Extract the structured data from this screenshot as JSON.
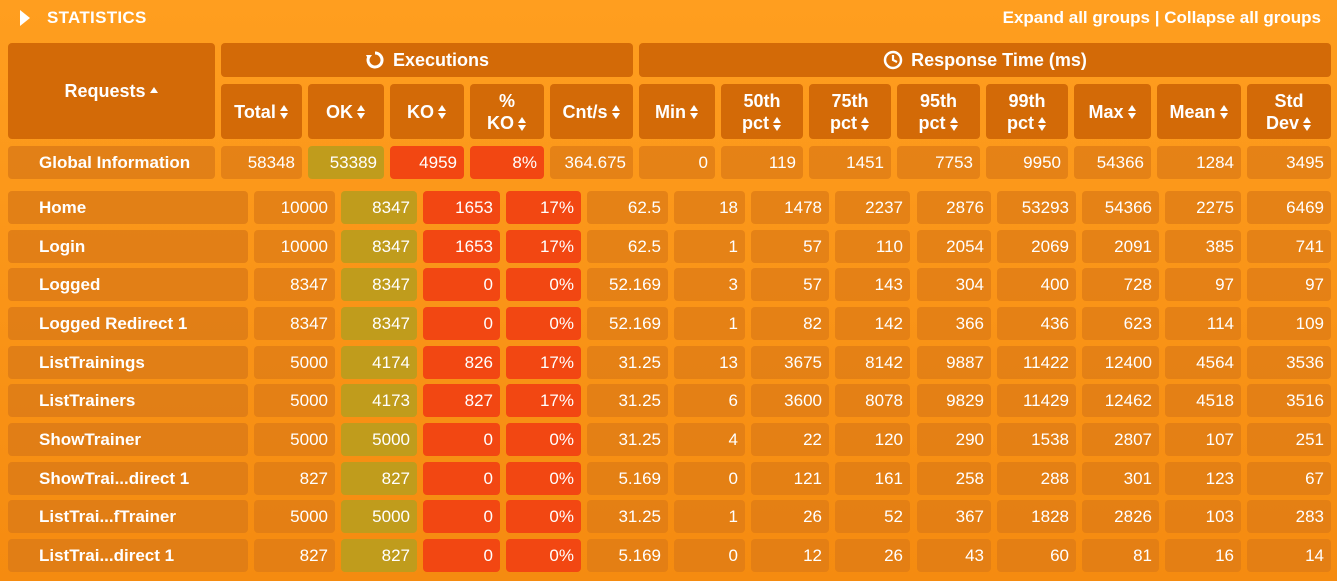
{
  "header": {
    "title": "STATISTICS",
    "expand_label": "Expand all groups",
    "separator": " | ",
    "collapse_label": "Collapse all groups"
  },
  "groups": {
    "executions": "Executions",
    "response_time": "Response Time (ms)"
  },
  "columns": {
    "requests": "Requests",
    "total": "Total",
    "ok": "OK",
    "ko_pct_1": "%",
    "ko_pct_2": "KO",
    "ko": "KO",
    "cnt": "Cnt/s",
    "min": "Min",
    "p50_1": "50th",
    "p50_2": "pct",
    "p75_1": "75th",
    "p75_2": "pct",
    "p95_1": "95th",
    "p95_2": "pct",
    "p99_1": "99th",
    "p99_2": "pct",
    "max": "Max",
    "mean": "Mean",
    "std_1": "Std",
    "std_2": "Dev"
  },
  "global": {
    "name": "Global Information",
    "values": [
      "58348",
      "53389",
      "4959",
      "8%",
      "364.675",
      "0",
      "119",
      "1451",
      "7753",
      "9950",
      "54366",
      "1284",
      "3495"
    ]
  },
  "rows": [
    {
      "name": "Home",
      "values": [
        "10000",
        "8347",
        "1653",
        "17%",
        "62.5",
        "18",
        "1478",
        "2237",
        "2876",
        "53293",
        "54366",
        "2275",
        "6469"
      ]
    },
    {
      "name": "Login",
      "values": [
        "10000",
        "8347",
        "1653",
        "17%",
        "62.5",
        "1",
        "57",
        "110",
        "2054",
        "2069",
        "2091",
        "385",
        "741"
      ]
    },
    {
      "name": "Logged",
      "values": [
        "8347",
        "8347",
        "0",
        "0%",
        "52.169",
        "3",
        "57",
        "143",
        "304",
        "400",
        "728",
        "97",
        "97"
      ]
    },
    {
      "name": "Logged Redirect 1",
      "values": [
        "8347",
        "8347",
        "0",
        "0%",
        "52.169",
        "1",
        "82",
        "142",
        "366",
        "436",
        "623",
        "114",
        "109"
      ]
    },
    {
      "name": "ListTrainings",
      "values": [
        "5000",
        "4174",
        "826",
        "17%",
        "31.25",
        "13",
        "3675",
        "8142",
        "9887",
        "11422",
        "12400",
        "4564",
        "3536"
      ]
    },
    {
      "name": "ListTrainers",
      "values": [
        "5000",
        "4173",
        "827",
        "17%",
        "31.25",
        "6",
        "3600",
        "8078",
        "9829",
        "11429",
        "12462",
        "4518",
        "3516"
      ]
    },
    {
      "name": "ShowTrainer",
      "values": [
        "5000",
        "5000",
        "0",
        "0%",
        "31.25",
        "4",
        "22",
        "120",
        "290",
        "1538",
        "2807",
        "107",
        "251"
      ]
    },
    {
      "name": "ShowTrai...direct 1",
      "values": [
        "827",
        "827",
        "0",
        "0%",
        "5.169",
        "0",
        "121",
        "161",
        "258",
        "288",
        "301",
        "123",
        "67"
      ]
    },
    {
      "name": "ListTrai...fTrainer",
      "values": [
        "5000",
        "5000",
        "0",
        "0%",
        "31.25",
        "1",
        "26",
        "52",
        "367",
        "1828",
        "2826",
        "103",
        "283"
      ]
    },
    {
      "name": "ListTrai...direct 1",
      "values": [
        "827",
        "827",
        "0",
        "0%",
        "5.169",
        "0",
        "12",
        "26",
        "43",
        "60",
        "81",
        "16",
        "14"
      ]
    }
  ]
}
